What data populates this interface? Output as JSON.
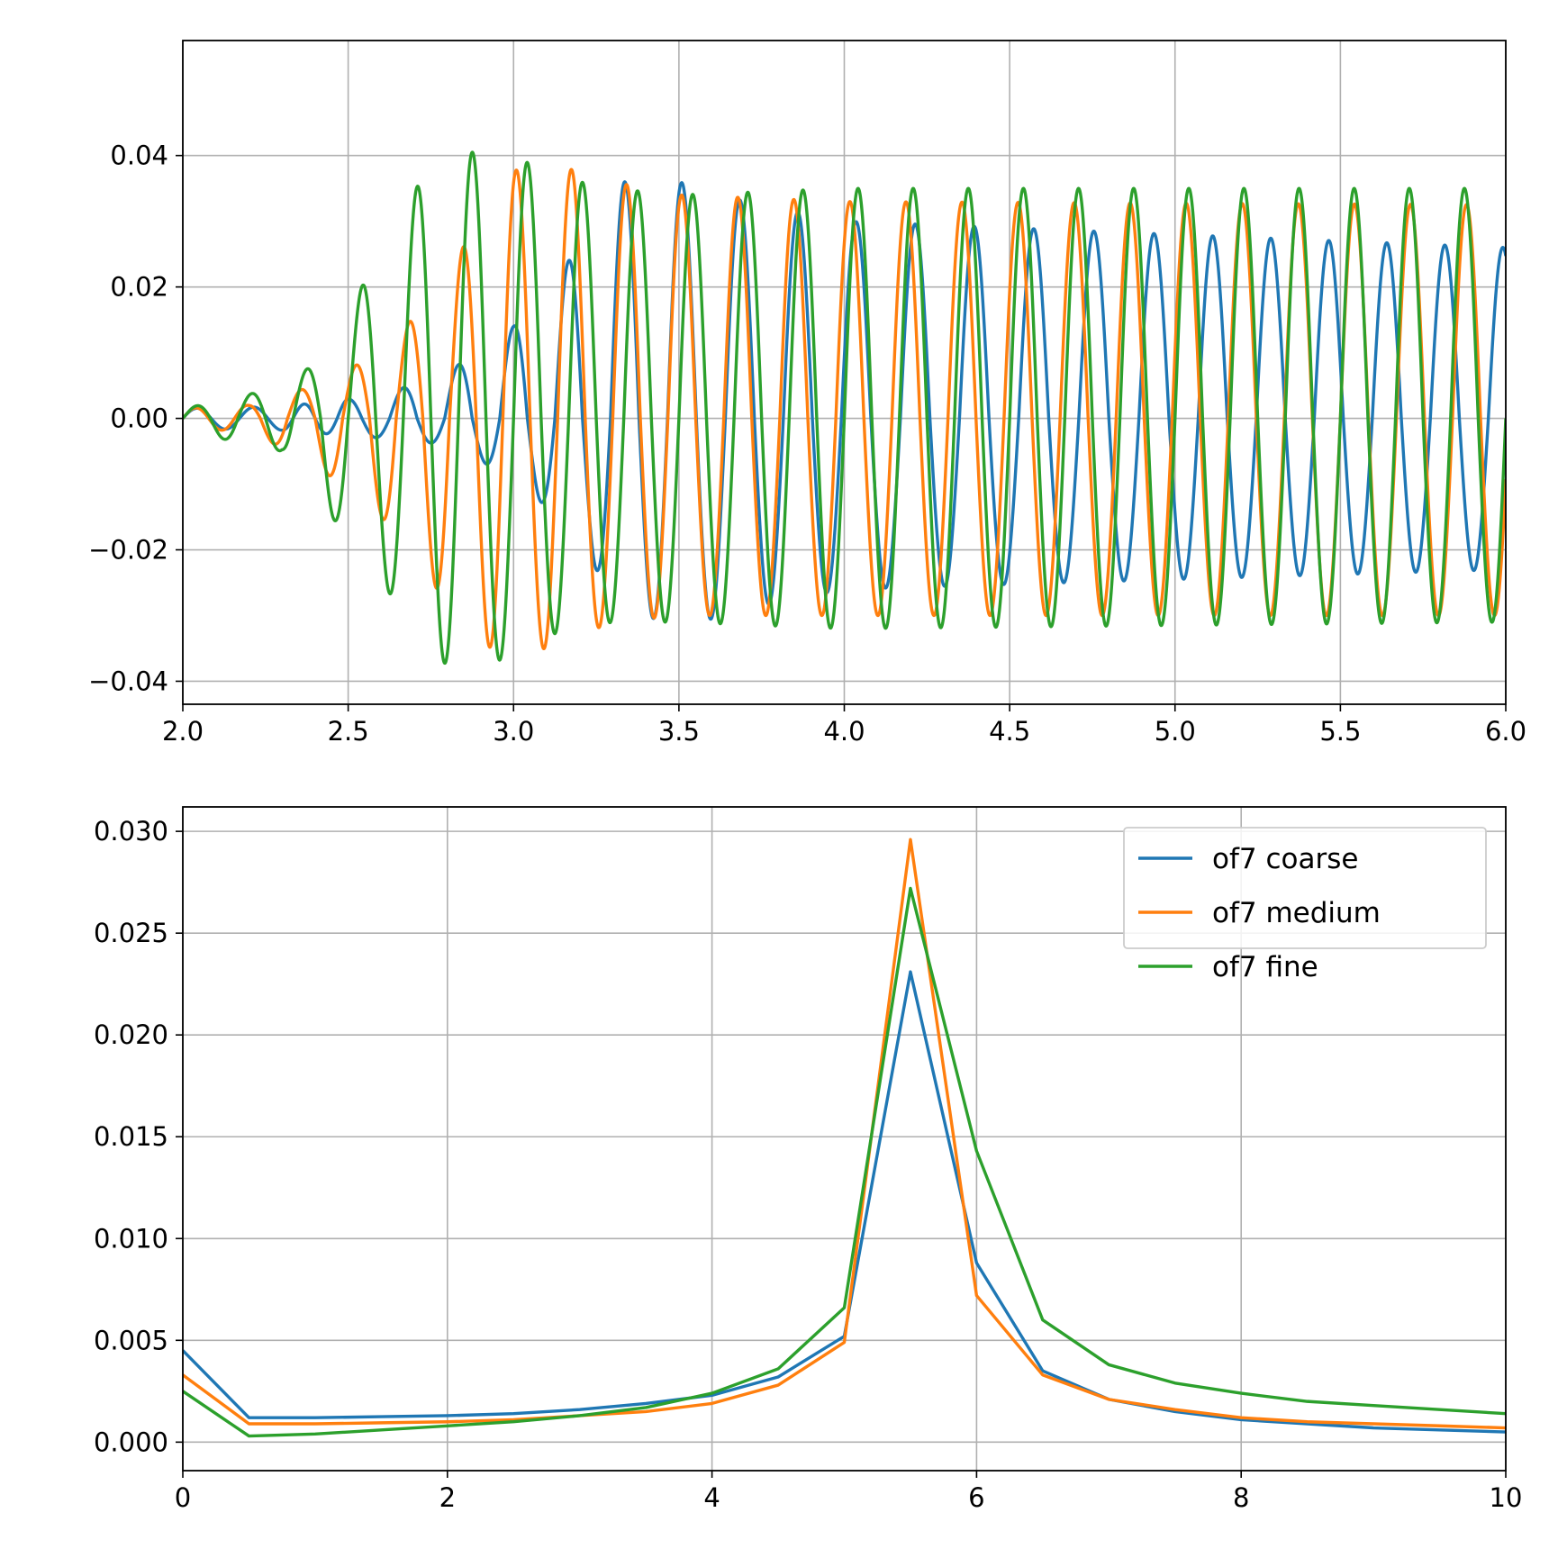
{
  "chart_data": [
    {
      "type": "line",
      "title": "",
      "xlabel": "",
      "ylabel": "",
      "xlim": [
        2.0,
        6.0
      ],
      "ylim": [
        -0.0435,
        0.0575
      ],
      "xticks": [
        "2.0",
        "2.5",
        "3.0",
        "3.5",
        "4.0",
        "4.5",
        "5.0",
        "5.5",
        "6.0"
      ],
      "yticks": [
        "−0.04",
        "−0.02",
        "0.00",
        "0.02",
        "0.04"
      ],
      "grid": true,
      "series": [
        {
          "color": "#1f77b4",
          "envelope": {
            "t": [
              2.0,
              2.3,
              2.6,
              2.8,
              3.0,
              3.2,
              3.3,
              3.5,
              3.7,
              4.0,
              6.0
            ],
            "max": [
              0.0015,
              0.0018,
              0.0035,
              0.007,
              0.014,
              0.026,
              0.036,
              0.036,
              0.033,
              0.03,
              0.026
            ],
            "min": [
              -0.0015,
              -0.0018,
              -0.003,
              -0.004,
              -0.009,
              -0.018,
              -0.028,
              -0.032,
              -0.029,
              -0.026,
              -0.023
            ]
          },
          "cycles": [
            [
              2.0,
              0
            ],
            [
              2.3,
              1.75
            ],
            [
              2.5,
              3.25
            ],
            [
              2.75,
              4.75
            ],
            [
              3.0,
              6.25
            ],
            [
              3.25,
              7.75
            ],
            [
              3.5,
              9.2
            ],
            [
              4.0,
              12.05
            ],
            [
              4.5,
              14.85
            ],
            [
              5.0,
              17.6
            ],
            [
              5.5,
              20.45
            ],
            [
              6.0,
              23.3
            ]
          ]
        },
        {
          "color": "#ff7f0e",
          "envelope": {
            "t": [
              2.0,
              2.2,
              2.4,
              2.6,
              2.8,
              2.95,
              3.1,
              3.3,
              3.5,
              4.0,
              6.0
            ],
            "max": [
              0.0015,
              0.002,
              0.005,
              0.01,
              0.021,
              0.037,
              0.039,
              0.036,
              0.034,
              0.033,
              0.0325
            ],
            "min": [
              -0.0015,
              -0.002,
              -0.007,
              -0.015,
              -0.028,
              -0.036,
              -0.035,
              -0.031,
              -0.03,
              -0.03,
              -0.03
            ]
          },
          "cycles": [
            [
              2.0,
              0
            ],
            [
              2.25,
              1.6
            ],
            [
              2.5,
              3.1
            ],
            [
              2.75,
              4.65
            ],
            [
              3.0,
              6.2
            ],
            [
              3.25,
              7.7
            ],
            [
              3.5,
              9.2
            ],
            [
              4.0,
              12.15
            ],
            [
              4.5,
              15.1
            ],
            [
              5.0,
              18.05
            ],
            [
              5.5,
              21.0
            ],
            [
              6.0,
              23.95
            ]
          ]
        },
        {
          "color": "#2ca02c",
          "envelope": {
            "t": [
              2.0,
              2.15,
              2.3,
              2.45,
              2.55,
              2.75,
              2.85,
              2.95,
              3.1,
              3.3,
              3.5,
              4.0,
              6.0
            ],
            "max": [
              0.0015,
              0.003,
              0.005,
              0.01,
              0.021,
              0.039,
              0.04,
              0.042,
              0.037,
              0.035,
              0.034,
              0.035,
              0.035
            ],
            "min": [
              -0.0015,
              -0.0035,
              -0.005,
              -0.015,
              -0.021,
              -0.036,
              -0.039,
              -0.037,
              -0.033,
              -0.031,
              -0.031,
              -0.032,
              -0.031
            ]
          },
          "cycles": [
            [
              2.0,
              0
            ],
            [
              2.25,
              1.5
            ],
            [
              2.5,
              3.0
            ],
            [
              2.75,
              4.5
            ],
            [
              3.0,
              6.0
            ],
            [
              3.25,
              7.5
            ],
            [
              3.5,
              9.0
            ],
            [
              4.0,
              12.0
            ],
            [
              4.5,
              15.0
            ],
            [
              5.0,
              18.0
            ],
            [
              5.5,
              21.0
            ],
            [
              6.0,
              24.0
            ]
          ]
        }
      ]
    },
    {
      "type": "line",
      "title": "",
      "xlabel": "",
      "ylabel": "",
      "xlim": [
        0,
        10
      ],
      "ylim": [
        -0.0014,
        0.0312
      ],
      "xticks": [
        "0",
        "2",
        "4",
        "6",
        "8",
        "10"
      ],
      "yticks": [
        "0.000",
        "0.005",
        "0.010",
        "0.015",
        "0.020",
        "0.025",
        "0.030"
      ],
      "grid": true,
      "legend": "upper right",
      "x": [
        0,
        0.5,
        1,
        1.5,
        2,
        2.5,
        3,
        3.5,
        4,
        4.5,
        5,
        5.5,
        6,
        6.5,
        7,
        7.5,
        8,
        8.5,
        9,
        9.5,
        10
      ],
      "series": [
        {
          "name": "of7 coarse",
          "color": "#1f77b4",
          "values": [
            0.0045,
            0.0012,
            0.0012,
            0.00125,
            0.0013,
            0.0014,
            0.0016,
            0.0019,
            0.0023,
            0.0032,
            0.0052,
            0.0231,
            0.0088,
            0.0035,
            0.0021,
            0.0015,
            0.0011,
            0.0009,
            0.0007,
            0.0006,
            0.0005
          ]
        },
        {
          "name": "of7 medium",
          "color": "#ff7f0e",
          "values": [
            0.0033,
            0.0009,
            0.0009,
            0.00095,
            0.001,
            0.0011,
            0.0013,
            0.0015,
            0.0019,
            0.0028,
            0.0049,
            0.0296,
            0.0072,
            0.0033,
            0.0021,
            0.0016,
            0.0012,
            0.001,
            0.0009,
            0.0008,
            0.0007
          ]
        },
        {
          "name": "of7 fine",
          "color": "#2ca02c",
          "values": [
            0.0025,
            0.0003,
            0.0004,
            0.0006,
            0.0008,
            0.001,
            0.0013,
            0.0017,
            0.0024,
            0.0036,
            0.0066,
            0.0272,
            0.0143,
            0.006,
            0.0038,
            0.0029,
            0.0024,
            0.002,
            0.0018,
            0.0016,
            0.0014
          ]
        }
      ]
    }
  ]
}
